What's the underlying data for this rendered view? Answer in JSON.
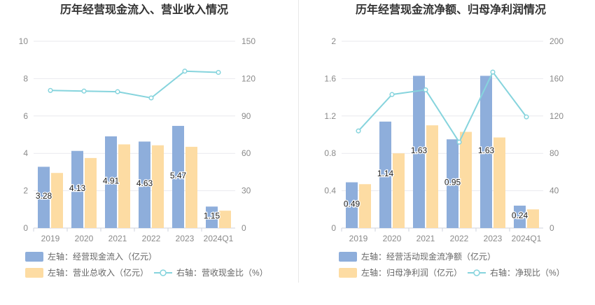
{
  "colors": {
    "bar_blue": "#8eaedb",
    "bar_yellow": "#fddca3",
    "line_cyan": "#86d4dd",
    "grid": "#e9e9ee",
    "axis_text": "#8a8a8a",
    "title_text": "#333333",
    "label_text": "#222222"
  },
  "chart_data": [
    {
      "type": "bar",
      "title": "历年经营现金流入、营业收入情况",
      "categories": [
        "2019",
        "2020",
        "2021",
        "2022",
        "2023",
        "2024Q1"
      ],
      "left_axis": {
        "ylim": [
          0,
          10
        ],
        "ticks": [
          "0",
          "2",
          "4",
          "6",
          "8",
          "10"
        ]
      },
      "right_axis": {
        "ylim": [
          0,
          150
        ],
        "ticks": [
          "0",
          "30",
          "60",
          "90",
          "120",
          "150"
        ]
      },
      "series": [
        {
          "name": "左轴：经营现金流入（亿元）",
          "axis": "left",
          "kind": "bar",
          "color": "#8eaedb",
          "values": [
            3.28,
            4.13,
            4.91,
            4.63,
            5.47,
            1.15
          ],
          "labels": [
            "3.28",
            "4.13",
            "4.91",
            "4.63",
            "5.47",
            "1.15"
          ]
        },
        {
          "name": "左轴：营业总收入（亿元）",
          "axis": "left",
          "kind": "bar",
          "color": "#fddca3",
          "values": [
            2.95,
            3.75,
            4.48,
            4.43,
            4.35,
            0.93
          ]
        },
        {
          "name": "右轴：营收现金比（%）",
          "axis": "right",
          "kind": "line",
          "color": "#86d4dd",
          "values": [
            110.5,
            110.0,
            109.5,
            104.5,
            126.0,
            125.0
          ]
        }
      ],
      "legend": {
        "placement": "bottom-left"
      }
    },
    {
      "type": "bar",
      "title": "历年经营现金流净额、归母净利润情况",
      "categories": [
        "2019",
        "2020",
        "2021",
        "2022",
        "2023",
        "2024Q1"
      ],
      "left_axis": {
        "ylim": [
          0,
          2
        ],
        "ticks": [
          "0",
          "0.4",
          "0.8",
          "1.2",
          "1.6",
          "2"
        ]
      },
      "right_axis": {
        "ylim": [
          0,
          200
        ],
        "ticks": [
          "0",
          "40",
          "80",
          "120",
          "160",
          "200"
        ]
      },
      "series": [
        {
          "name": "左轴：经营活动现金流净额（亿元）",
          "axis": "left",
          "kind": "bar",
          "color": "#8eaedb",
          "values": [
            0.49,
            1.14,
            1.63,
            0.95,
            1.63,
            0.24
          ],
          "labels": [
            "0.49",
            "1.14",
            "1.63",
            "0.95",
            "1.63",
            "0.24"
          ]
        },
        {
          "name": "左轴：归母净利润（亿元）",
          "axis": "left",
          "kind": "bar",
          "color": "#fddca3",
          "values": [
            0.47,
            0.8,
            1.1,
            1.03,
            0.97,
            0.2
          ]
        },
        {
          "name": "右轴：净现比（%）",
          "axis": "right",
          "kind": "line",
          "color": "#86d4dd",
          "values": [
            104,
            143,
            148,
            92,
            167,
            119
          ]
        }
      ],
      "legend": {
        "placement": "bottom-left"
      }
    }
  ]
}
